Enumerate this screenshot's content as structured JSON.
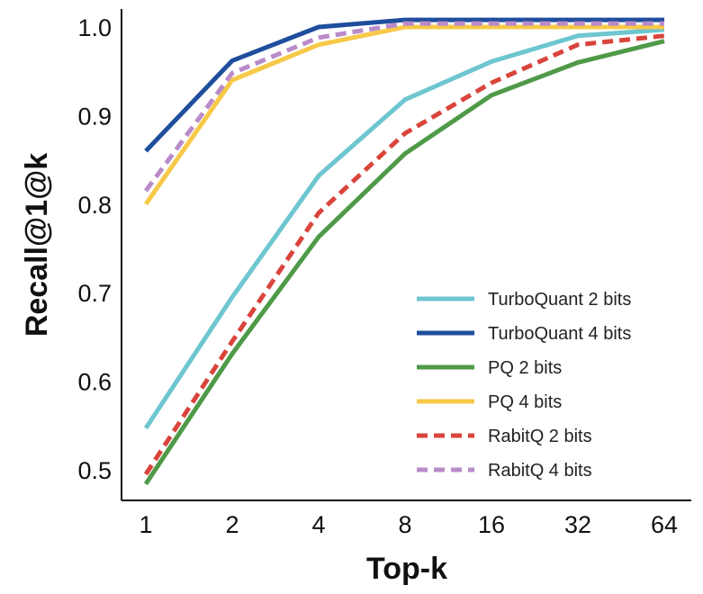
{
  "chart_data": {
    "type": "line",
    "xlabel": "Top-k",
    "ylabel": "Recall@1@k",
    "x": [
      1,
      2,
      4,
      8,
      16,
      32,
      64
    ],
    "x_tick_labels": [
      "1",
      "2",
      "4",
      "8",
      "16",
      "32",
      "64"
    ],
    "x_scale": "log2",
    "ylim": [
      0.48,
      1.02
    ],
    "y_ticks": [
      0.5,
      0.6,
      0.7,
      0.8,
      0.9,
      1.0
    ],
    "y_tick_labels": [
      "0.5",
      "0.6",
      "0.7",
      "0.8",
      "0.9",
      "1.0"
    ],
    "grid": false,
    "legend_position": "bottom-right",
    "series": [
      {
        "name": "TurboQuant 2 bits",
        "color": "#6ec6d0",
        "dash": "solid",
        "values": [
          0.547,
          0.695,
          0.832,
          0.918,
          0.961,
          0.99,
          0.997
        ]
      },
      {
        "name": "TurboQuant 4 bits",
        "color": "#1f4e9c",
        "dash": "solid",
        "values": [
          0.86,
          0.962,
          1.0,
          1.008,
          1.008,
          1.008,
          1.008
        ]
      },
      {
        "name": "PQ 2 bits",
        "color": "#4f9a48",
        "dash": "solid",
        "values": [
          0.484,
          0.631,
          0.763,
          0.857,
          0.923,
          0.96,
          0.984
        ]
      },
      {
        "name": "PQ 4 bits",
        "color": "#f7c948",
        "dash": "solid",
        "values": [
          0.8,
          0.94,
          0.98,
          1.0,
          1.0,
          1.0,
          1.0
        ]
      },
      {
        "name": "RabitQ 2 bits",
        "color": "#d9443b",
        "dash": "dashed",
        "values": [
          0.495,
          0.645,
          0.79,
          0.88,
          0.937,
          0.98,
          0.99
        ]
      },
      {
        "name": "RabitQ 4 bits",
        "color": "#b98bc9",
        "dash": "dashed",
        "values": [
          0.815,
          0.948,
          0.988,
          1.004,
          1.004,
          1.004,
          1.004
        ]
      }
    ]
  }
}
